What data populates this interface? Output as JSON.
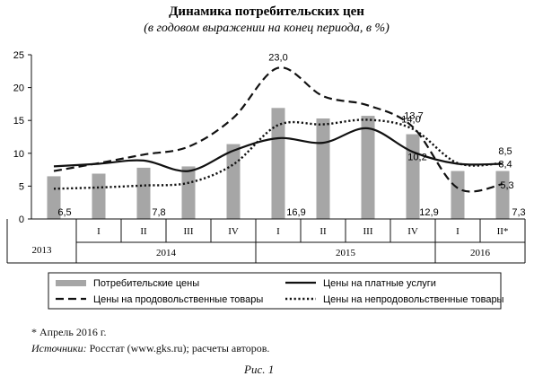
{
  "chart_data": {
    "type": "bar",
    "title": "Динамика потребительских цен",
    "subtitle": "(в годовом выражении на конец периода, в %)",
    "ylim": [
      0,
      25
    ],
    "yticks": [
      0,
      5,
      10,
      15,
      20,
      25
    ],
    "grid": false,
    "legend_position": "bottom",
    "categories": [
      "2013",
      "2014 I",
      "2014 II",
      "2014 III",
      "2014 IV",
      "2015 I",
      "2015 II",
      "2015 III",
      "2015 IV",
      "2016 I",
      "2016 II*"
    ],
    "quarter_labels": [
      "",
      "I",
      "II",
      "III",
      "IV",
      "I",
      "II",
      "III",
      "IV",
      "I",
      "II*"
    ],
    "year_labels": [
      {
        "label": "2013",
        "from": 0,
        "to": 0
      },
      {
        "label": "2014",
        "from": 1,
        "to": 4
      },
      {
        "label": "2015",
        "from": 5,
        "to": 8
      },
      {
        "label": "2016",
        "from": 9,
        "to": 10
      }
    ],
    "series": [
      {
        "name": "Потребительские цены",
        "kind": "bar",
        "color": "#a6a6a6",
        "values": [
          6.5,
          6.9,
          7.8,
          8.0,
          11.4,
          16.9,
          15.3,
          15.7,
          12.9,
          7.3,
          7.3
        ]
      },
      {
        "name": "Цены на платные услуги",
        "kind": "line",
        "style": "solid",
        "values": [
          8.0,
          8.4,
          8.9,
          7.3,
          10.4,
          12.3,
          11.6,
          13.8,
          10.2,
          8.4,
          8.4
        ]
      },
      {
        "name": "Цены на продовольственные товары",
        "kind": "line",
        "style": "dashed",
        "values": [
          7.3,
          8.5,
          9.8,
          11.0,
          15.4,
          23.0,
          18.7,
          17.3,
          14.0,
          4.7,
          5.3
        ]
      },
      {
        "name": "Цены на непродовольственные товары",
        "kind": "line",
        "style": "dotted",
        "values": [
          4.6,
          4.8,
          5.1,
          5.5,
          8.3,
          14.3,
          14.4,
          15.1,
          13.7,
          8.5,
          8.5
        ]
      }
    ],
    "data_labels": [
      {
        "text": "6,5",
        "index": 0,
        "value": 6.5
      },
      {
        "text": "7,8",
        "index": 2,
        "value": 7.8
      },
      {
        "text": "16,9",
        "index": 5,
        "value": 16.9
      },
      {
        "text": "12,9",
        "index": 8,
        "value": 12.9
      },
      {
        "text": "7,3",
        "index": 10,
        "value": 7.3
      },
      {
        "text": "23,0",
        "index": 5,
        "value": 23.0
      },
      {
        "text": "14,0",
        "index": 8,
        "value": 14.0
      },
      {
        "text": "13,7",
        "index": 8,
        "value": 13.7
      },
      {
        "text": "10,2",
        "index": 8,
        "value": 10.2
      },
      {
        "text": "8,5",
        "index": 10,
        "value": 8.5
      },
      {
        "text": "8,4",
        "index": 10,
        "value": 8.4
      },
      {
        "text": "5,3",
        "index": 10,
        "value": 5.3
      }
    ]
  },
  "footnote": "* Апрель 2016 г.",
  "sources_label": "Источники:",
  "sources_text": " Росстат (www.gks.ru); расчеты авторов.",
  "figure_caption": "Рис. 1"
}
